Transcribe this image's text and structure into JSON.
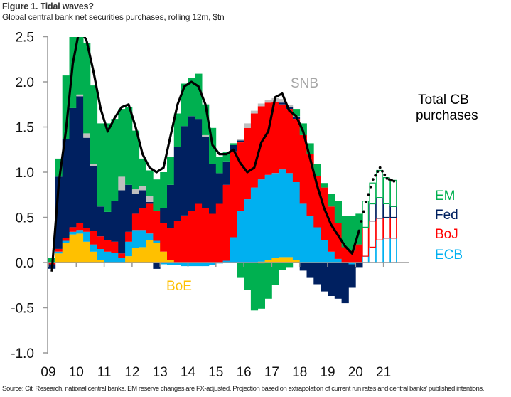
{
  "header": {
    "title": "Figure 1. Tidal waves?",
    "subtitle": "Global central bank net securities purchases, rolling 12m, $tn"
  },
  "footer": {
    "source": "Source: Citi Research, national central banks. EM reserve changes are FX-adjusted. Projection based on extrapolation of current run rates and central banks' published intentions."
  },
  "chart_data": {
    "type": "bar",
    "stacked": true,
    "title": "Figure 1. Tidal waves?",
    "ylabel": "$tn",
    "ylim": [
      -1.0,
      2.5
    ],
    "yticks": [
      "2.5",
      "2.0",
      "1.5",
      "1.0",
      "0.5",
      "0.0",
      "-0.5",
      "-1.0"
    ],
    "ytick_values": [
      2.5,
      2.0,
      1.5,
      1.0,
      0.5,
      0.0,
      -0.5,
      -1.0
    ],
    "xticks": [
      "09",
      "10",
      "11",
      "12",
      "13",
      "14",
      "15",
      "16",
      "17",
      "18",
      "19",
      "20",
      "21"
    ],
    "xtick_values": [
      2009,
      2010,
      2011,
      2012,
      2013,
      2014,
      2015,
      2016,
      2017,
      2018,
      2019,
      2020,
      2021
    ],
    "x_step": 0.25,
    "x": [
      2009.0,
      2009.25,
      2009.5,
      2009.75,
      2010.0,
      2010.25,
      2010.5,
      2010.75,
      2011.0,
      2011.25,
      2011.5,
      2011.75,
      2012.0,
      2012.25,
      2012.5,
      2012.75,
      2013.0,
      2013.25,
      2013.5,
      2013.75,
      2014.0,
      2014.25,
      2014.5,
      2014.75,
      2015.0,
      2015.25,
      2015.5,
      2015.75,
      2016.0,
      2016.25,
      2016.5,
      2016.75,
      2017.0,
      2017.25,
      2017.5,
      2017.75,
      2018.0,
      2018.25,
      2018.5,
      2018.75,
      2019.0,
      2019.25,
      2019.5,
      2019.75,
      2020.0,
      2020.25,
      2020.5,
      2020.75,
      2021.0,
      2021.25
    ],
    "projection_start": 2020.25,
    "series": [
      {
        "name": "BoE",
        "color": "#ffc000",
        "values": [
          0,
          0.1,
          0.22,
          0.31,
          0.32,
          0.23,
          0.12,
          0.03,
          0,
          0,
          0,
          0.07,
          0.16,
          0.17,
          0.25,
          0.22,
          0.12,
          0.03,
          0,
          0,
          0,
          0,
          0,
          0,
          0,
          0,
          0,
          0,
          0,
          0,
          0.01,
          0.03,
          0.05,
          0.06,
          0.06,
          0.03,
          0,
          0,
          0,
          0,
          0,
          0,
          0,
          0,
          0,
          0,
          0,
          0,
          0,
          0
        ]
      },
      {
        "name": "ECB",
        "color": "#00b0f0",
        "values": [
          0,
          0.02,
          0.02,
          0.03,
          0.04,
          0.11,
          0.08,
          0.12,
          0.12,
          0.11,
          0.05,
          0.16,
          0.2,
          0.19,
          0.07,
          0.02,
          -0.02,
          -0.03,
          -0.03,
          -0.04,
          -0.04,
          -0.04,
          -0.04,
          -0.03,
          -0.01,
          0.02,
          0.28,
          0.57,
          0.7,
          0.83,
          0.91,
          0.94,
          0.94,
          0.97,
          0.93,
          0.86,
          0.65,
          0.52,
          0.39,
          0.25,
          0.12,
          0.04,
          0,
          -0.02,
          0,
          0.07,
          0.17,
          0.25,
          0.27,
          0.27
        ]
      },
      {
        "name": "BoJ",
        "color": "#ff0000",
        "values": [
          -0.02,
          0.03,
          0.03,
          0.05,
          0.08,
          0.04,
          0.15,
          0.14,
          0.13,
          0.12,
          0.05,
          0.11,
          0.18,
          0.24,
          0.33,
          0.33,
          0.32,
          0.35,
          0.46,
          0.52,
          0.57,
          0.65,
          0.6,
          0.54,
          0.65,
          0.84,
          0.95,
          0.76,
          0.79,
          0.82,
          0.81,
          0.8,
          0.79,
          0.72,
          0.71,
          0.7,
          0.76,
          0.68,
          0.57,
          0.58,
          0.5,
          0.4,
          0.17,
          0.13,
          0.2,
          0.32,
          0.29,
          0.24,
          0.23,
          0.23
        ]
      },
      {
        "name": "Fed",
        "color": "#002060",
        "values": [
          -0.05,
          0.8,
          1.1,
          1.32,
          1.4,
          1.0,
          0.72,
          0.33,
          0.31,
          0.45,
          0.7,
          0.52,
          0.22,
          0.2,
          0.02,
          -0.07,
          0.16,
          0.48,
          0.82,
          0.99,
          1.05,
          0.94,
          0.79,
          0.55,
          0.34,
          0.26,
          0.07,
          0.02,
          0,
          0,
          -0.01,
          0,
          0,
          0.02,
          0.02,
          0.02,
          -0.09,
          -0.17,
          -0.24,
          -0.32,
          -0.37,
          -0.4,
          -0.45,
          -0.26,
          -0.05,
          0,
          0.19,
          0.23,
          0.15,
          0.12
        ]
      },
      {
        "name": "SNB",
        "color": "#bfbfbf",
        "values": [
          0,
          0,
          0,
          0,
          0.02,
          0.05,
          0.02,
          0,
          0,
          0,
          0.15,
          0,
          0.05,
          0.05,
          0.07,
          0,
          0,
          0,
          0,
          0,
          0,
          0,
          0.02,
          0,
          0,
          0,
          0,
          0.02,
          0.05,
          0.03,
          0.03,
          0.03,
          0.04,
          0.04,
          0.02,
          0.01,
          0,
          0,
          0,
          0,
          0,
          0,
          0,
          0,
          0,
          0,
          0,
          0,
          0,
          0
        ]
      },
      {
        "name": "EM",
        "color": "#00b050",
        "values": [
          0.05,
          0.2,
          0.7,
          0.85,
          0.75,
          1.0,
          0.87,
          0.92,
          0.98,
          0.91,
          0.75,
          0.86,
          0.65,
          0.3,
          0.28,
          0.35,
          0.4,
          0.31,
          0.37,
          0.47,
          0.42,
          0.5,
          0.34,
          0.4,
          0.18,
          0.1,
          0.02,
          -0.17,
          -0.3,
          -0.53,
          -0.5,
          -0.4,
          -0.25,
          -0.08,
          -0.05,
          0.08,
          0.13,
          0.12,
          0.13,
          0.05,
          0.14,
          0.24,
          0.35,
          0.39,
          0.34,
          0.29,
          0.23,
          0.3,
          0.29,
          0.29
        ]
      }
    ],
    "total_line": {
      "name": "Total CB purchases",
      "color": "#000000",
      "values": [
        -0.1,
        0.88,
        1.45,
        2.2,
        2.6,
        2.45,
        2.1,
        1.7,
        1.45,
        1.6,
        1.72,
        1.75,
        1.5,
        1.2,
        1.05,
        1.0,
        1.05,
        1.4,
        1.75,
        1.95,
        2.0,
        1.95,
        1.75,
        1.3,
        1.2,
        1.2,
        1.25,
        1.1,
        1.0,
        1.05,
        1.33,
        1.45,
        1.83,
        1.87,
        1.68,
        1.62,
        1.45,
        1.15,
        0.85,
        0.6,
        0.42,
        0.3,
        0.18,
        0.1,
        0.35
      ],
      "projection_values": [
        0.35,
        0.67,
        0.92,
        1.05,
        0.93,
        0.9
      ]
    },
    "labels": {
      "total_line1": "Total CB",
      "total_line2": "purchases",
      "em": "EM",
      "fed": "Fed",
      "boj": "BoJ",
      "ecb": "ECB",
      "snb": "SNB",
      "boe": "BoE"
    },
    "grid": false,
    "legend": "right"
  }
}
